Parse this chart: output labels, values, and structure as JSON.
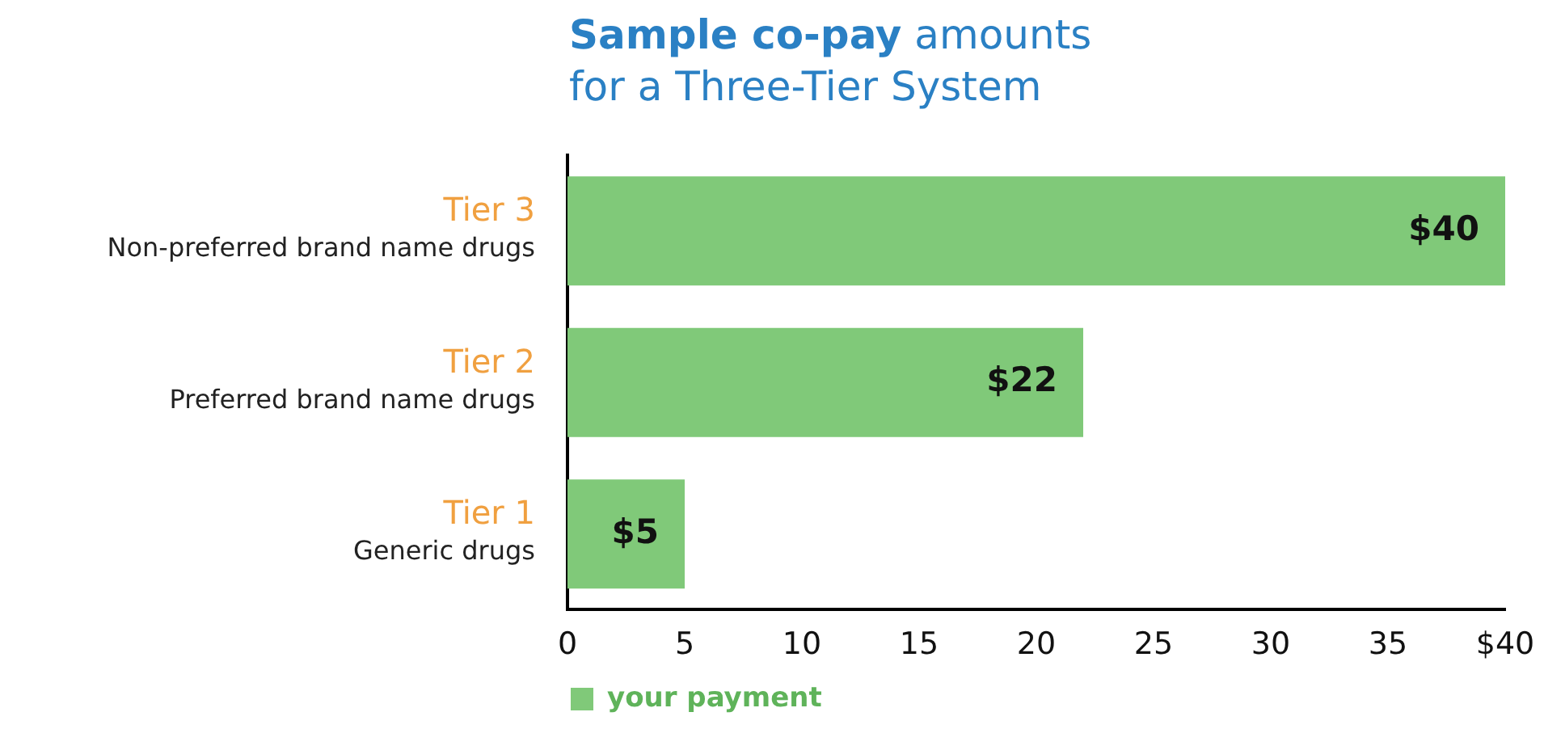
{
  "chart_data": {
    "type": "bar",
    "orientation": "horizontal",
    "title": "Sample co-pay amounts",
    "subtitle": "for a Three-Tier System",
    "categories": [
      "Tier 3\nNon-preferred brand name drugs",
      "Tier 2\nPreferred brand name drugs",
      "Tier 1\nGeneric drugs"
    ],
    "series": [
      {
        "name": "your payment",
        "color": "#80c979",
        "values": [
          40,
          22,
          5
        ],
        "value_labels": [
          "$40",
          "$22",
          "$5"
        ]
      }
    ],
    "xlim": [
      0,
      40
    ],
    "xticks": [
      0,
      5,
      10,
      15,
      20,
      25,
      30,
      35,
      {
        "value": 40,
        "label": "$40"
      }
    ],
    "grid": false,
    "legend": "bottom left"
  }
}
